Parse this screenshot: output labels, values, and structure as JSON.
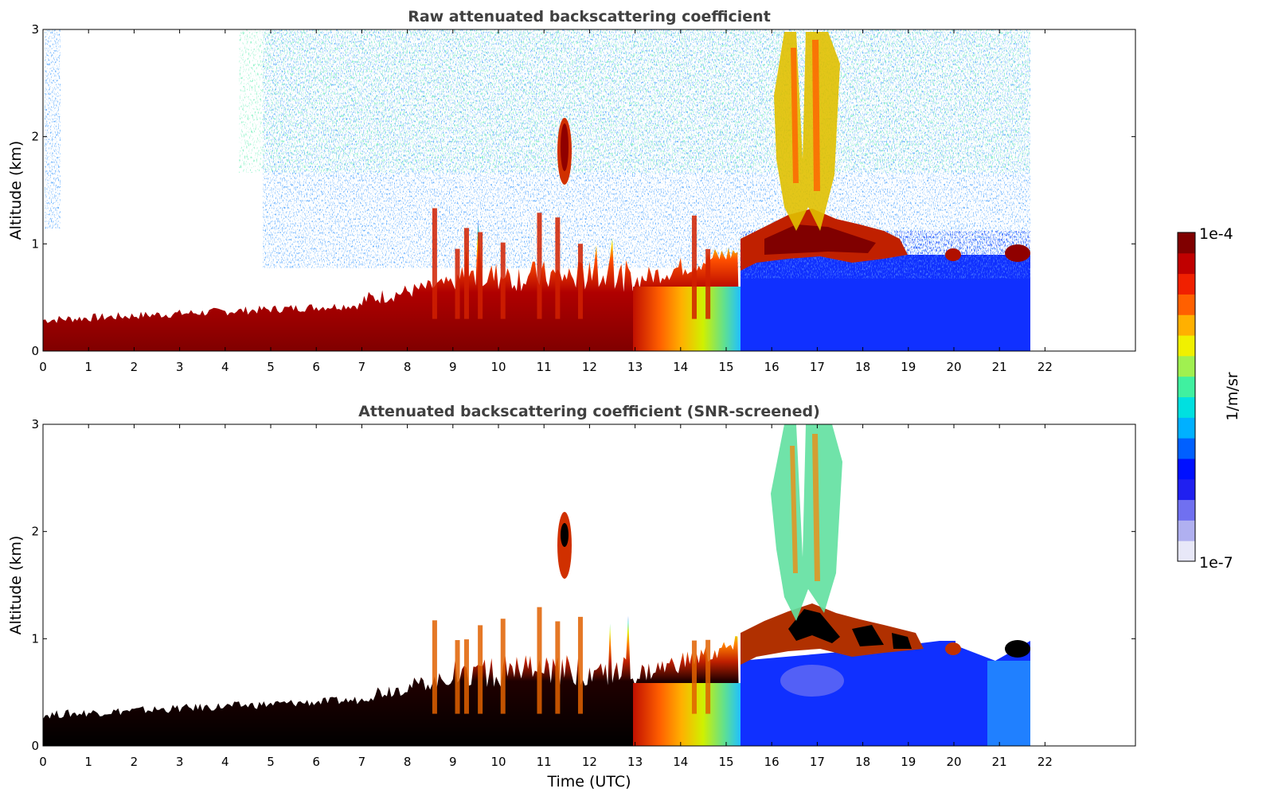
{
  "chart_data": [
    {
      "type": "heatmap",
      "title": "Raw attenuated backscattering coefficient",
      "xlabel": "",
      "ylabel": "Altitude (km)",
      "xlim": [
        0,
        24
      ],
      "ylim": [
        0,
        3
      ],
      "xticks": [
        "0",
        "1",
        "2",
        "3",
        "4",
        "5",
        "6",
        "7",
        "8",
        "9",
        "10",
        "11",
        "12",
        "13",
        "14",
        "15",
        "16",
        "17",
        "18",
        "19",
        "20",
        "21",
        "22"
      ],
      "yticks": [
        "0",
        "1",
        "2",
        "3"
      ],
      "data_end_hour": 21.65,
      "features": [
        {
          "name": "boundary-layer",
          "hours": [
            0,
            15.3
          ],
          "top_km": "0.25 rising to 1.0"
        },
        {
          "name": "cloud-layer",
          "hours": [
            15.3,
            21.65
          ],
          "altitude_km": "0.8-1.3"
        },
        {
          "name": "elevated-plume",
          "hours": [
            11.3,
            11.7
          ],
          "altitude_km": "1.5-2.2"
        },
        {
          "name": "high-plumes",
          "hours": [
            16.0,
            17.5
          ],
          "altitude_km": "1.0-3.0"
        }
      ]
    },
    {
      "type": "heatmap",
      "title": "Attenuated backscattering coefficient (SNR-screened)",
      "xlabel": "Time (UTC)",
      "ylabel": "Altitude (km)",
      "xlim": [
        0,
        24
      ],
      "ylim": [
        0,
        3
      ],
      "xticks": [
        "0",
        "1",
        "2",
        "3",
        "4",
        "5",
        "6",
        "7",
        "8",
        "9",
        "10",
        "11",
        "12",
        "13",
        "14",
        "15",
        "16",
        "17",
        "18",
        "19",
        "20",
        "21",
        "22"
      ],
      "yticks": [
        "0",
        "1",
        "2",
        "3"
      ],
      "data_end_hour": 21.65
    }
  ],
  "colorbar": {
    "max_label": "1e-4",
    "min_label": "1e-7",
    "unit_label": "1/m/sr",
    "colors": [
      "#e8e8f8",
      "#b0b0f0",
      "#7070f0",
      "#2020f0",
      "#0010ff",
      "#0060ff",
      "#00b0ff",
      "#00e0e0",
      "#40f0a0",
      "#a0f050",
      "#f0f000",
      "#ffb000",
      "#ff6000",
      "#f02000",
      "#c00000",
      "#800000"
    ]
  }
}
